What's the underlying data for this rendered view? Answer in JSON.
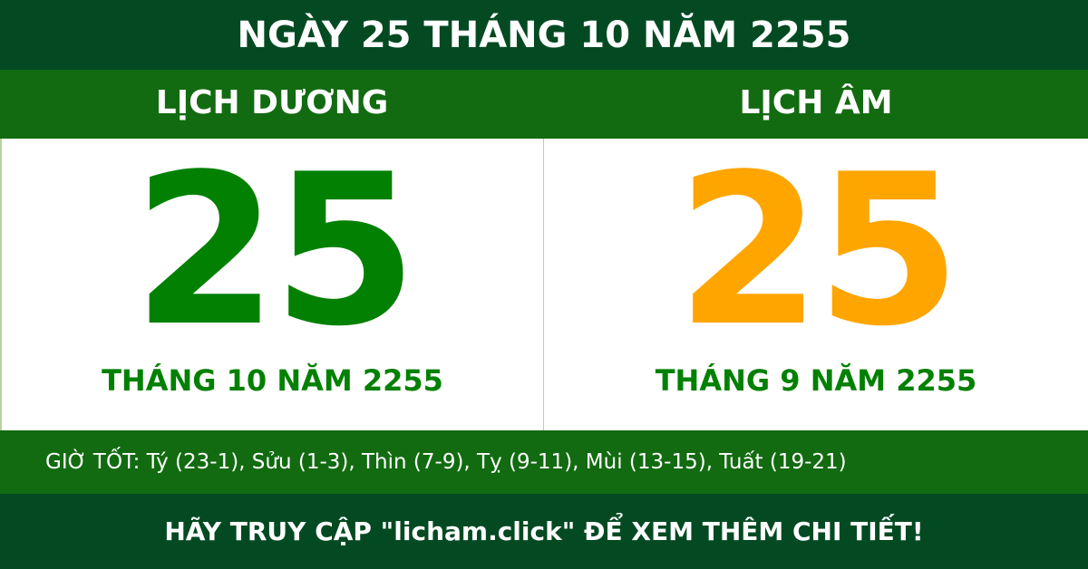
{
  "title": "NGÀY 25 THÁNG 10 NĂM 2255",
  "solar": {
    "label": "LỊCH DƯƠNG",
    "day": "25",
    "month_year": "THÁNG 10 NĂM 2255"
  },
  "lunar": {
    "label": "LỊCH ÂM",
    "day": "25",
    "month_year": "THÁNG 9 NĂM 2255"
  },
  "good_hours": "GIỜ TỐT: Tý (23-1), Sửu (1-3), Thìn (7-9), Tỵ (9-11), Mùi (13-15), Tuất (19-21)",
  "footer": "HÃY TRUY CẬP \"licham.click\" ĐỂ XEM THÊM CHI TIẾT!",
  "colors": {
    "dark_green": "#034a22",
    "green": "#126b10",
    "solar_day": "#018001",
    "lunar_day": "#ffa500"
  }
}
